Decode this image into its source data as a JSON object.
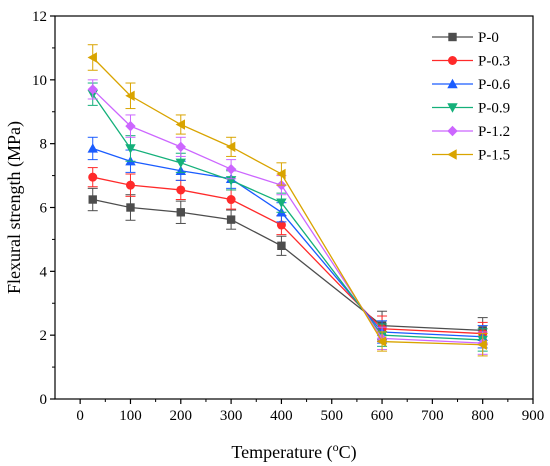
{
  "chart_data": {
    "type": "line",
    "xlabel": "Temperature (°C)",
    "xlabel_parts": {
      "pre": "Temperature (",
      "sup": "o",
      "post": "C)"
    },
    "ylabel": "Flexural strength (MPa)",
    "xlim": [
      -50,
      900
    ],
    "ylim": [
      0,
      12
    ],
    "xticks": [
      0,
      100,
      200,
      300,
      400,
      500,
      600,
      700,
      800,
      900
    ],
    "yticks": [
      0,
      2,
      4,
      6,
      8,
      10,
      12
    ],
    "grid": false,
    "legend_position": "top-right",
    "x": [
      25,
      100,
      200,
      300,
      400,
      600,
      800
    ],
    "series": [
      {
        "name": "P-0",
        "color": "#4d4d4d",
        "marker": "square",
        "values": [
          6.25,
          6.0,
          5.85,
          5.62,
          4.8,
          2.3,
          2.15
        ],
        "errors": [
          0.35,
          0.4,
          0.35,
          0.3,
          0.3,
          0.45,
          0.4
        ]
      },
      {
        "name": "P-0.3",
        "color": "#ff2a2a",
        "marker": "circle",
        "values": [
          6.95,
          6.7,
          6.55,
          6.25,
          5.45,
          2.2,
          2.05
        ],
        "errors": [
          0.3,
          0.35,
          0.3,
          0.3,
          0.3,
          0.4,
          0.35
        ]
      },
      {
        "name": "P-0.6",
        "color": "#1a5cff",
        "marker": "triangle-up",
        "values": [
          7.85,
          7.45,
          7.15,
          6.9,
          5.85,
          2.1,
          1.95
        ],
        "errors": [
          0.35,
          0.35,
          0.3,
          0.3,
          0.3,
          0.35,
          0.35
        ]
      },
      {
        "name": "P-0.9",
        "color": "#14b07a",
        "marker": "triangle-down",
        "values": [
          9.55,
          7.85,
          7.4,
          6.85,
          6.15,
          2.0,
          1.85
        ],
        "errors": [
          0.35,
          0.4,
          0.3,
          0.3,
          0.3,
          0.35,
          0.35
        ]
      },
      {
        "name": "P-1.2",
        "color": "#cc66ff",
        "marker": "diamond",
        "values": [
          9.7,
          8.55,
          7.9,
          7.2,
          6.7,
          1.9,
          1.75
        ],
        "errors": [
          0.3,
          0.35,
          0.3,
          0.3,
          0.3,
          0.35,
          0.35
        ]
      },
      {
        "name": "P-1.5",
        "color": "#d9a400",
        "marker": "triangle-left",
        "values": [
          10.7,
          9.5,
          8.6,
          7.9,
          7.05,
          1.8,
          1.7
        ],
        "errors": [
          0.4,
          0.4,
          0.3,
          0.3,
          0.35,
          0.3,
          0.35
        ]
      }
    ]
  }
}
